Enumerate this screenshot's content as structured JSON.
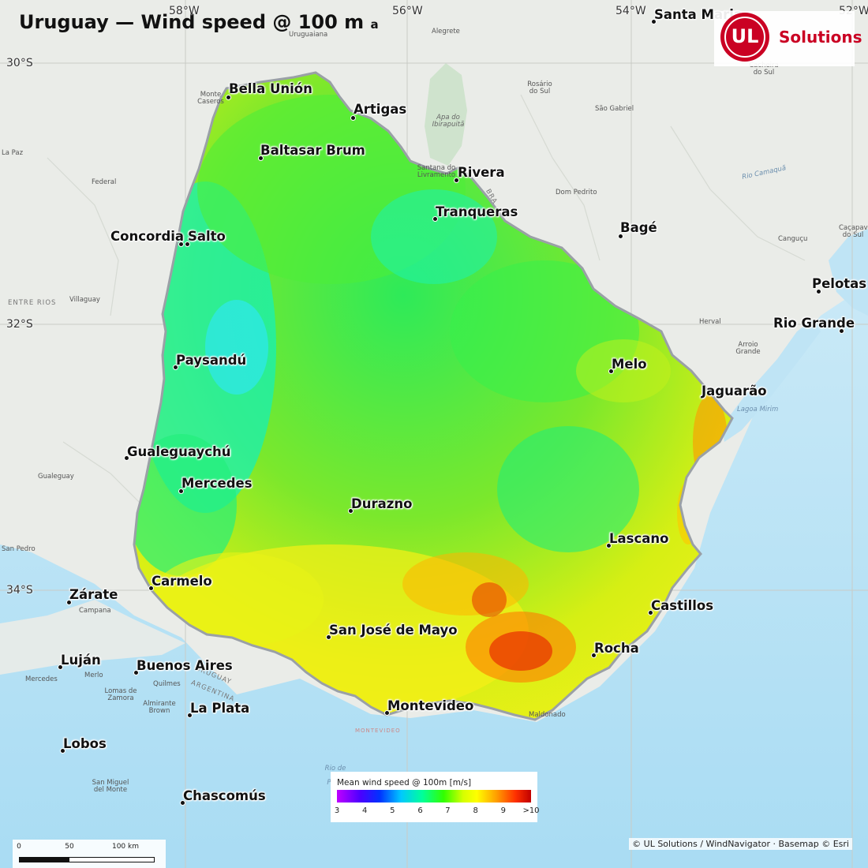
{
  "title": "Uruguay — Wind speed @ 100 m",
  "title_trailing": "a",
  "graticule": {
    "longitudes": [
      "58°W",
      "56°W",
      "54°W",
      "52°W"
    ],
    "latitudes": [
      "30°S",
      "32°S",
      "34°S"
    ]
  },
  "cities": [
    {
      "name": "Bella Unión"
    },
    {
      "name": "Artigas"
    },
    {
      "name": "Baltasar Brum"
    },
    {
      "name": "Rivera"
    },
    {
      "name": "Tranqueras"
    },
    {
      "name": "Concordia"
    },
    {
      "name": "Salto"
    },
    {
      "name": "Bagé"
    },
    {
      "name": "Pelotas"
    },
    {
      "name": "Rio Grande"
    },
    {
      "name": "Paysandú"
    },
    {
      "name": "Melo"
    },
    {
      "name": "Jaguarão"
    },
    {
      "name": "Gualeguaychú"
    },
    {
      "name": "Mercedes"
    },
    {
      "name": "Durazno"
    },
    {
      "name": "Lascano"
    },
    {
      "name": "Carmelo"
    },
    {
      "name": "Zárate"
    },
    {
      "name": "Castillos"
    },
    {
      "name": "San José de Mayo"
    },
    {
      "name": "Rocha"
    },
    {
      "name": "Luján"
    },
    {
      "name": "Buenos Aires"
    },
    {
      "name": "Montevideo"
    },
    {
      "name": "La Plata"
    },
    {
      "name": "Lobos"
    },
    {
      "name": "Chascomús"
    },
    {
      "name": "Santa Maria"
    }
  ],
  "basemap_labels": [
    "Uruguaiana",
    "Alegrete",
    "Monte Caseros",
    "Rosário do Sul",
    "São Gabriel",
    "Apa do Ibirapuitã",
    "Santana do Livramento",
    "Dom Pedrito",
    "Cacheira do Sul",
    "Caçapava do Sul",
    "Canguçu",
    "Herval",
    "Arroio Grande",
    "Lagoa Mirim",
    "La Paz",
    "Federal",
    "Villaguay",
    "ENTRE RIOS",
    "Gualeguay",
    "San Pedro",
    "Campana",
    "Mercedes",
    "Merlo",
    "Lomas de Zamora",
    "Quilmes",
    "Almirante Brown",
    "San Miguel del Monte",
    "URUGUAY",
    "ARGENTINA",
    "Rio de la Plata",
    "MONTEVIDEO",
    "Maldonado",
    "Rio Camaquã",
    "BRA"
  ],
  "logo": {
    "mark": "UL",
    "text": "Solutions"
  },
  "legend": {
    "title": "Mean wind speed @ 100m  [m/s]",
    "ticks": [
      "3",
      "4",
      "5",
      "6",
      "7",
      "8",
      "9",
      ">10"
    ],
    "colors": [
      "#c000ff",
      "#0032ff",
      "#00c8ff",
      "#00ff9a",
      "#32ff00",
      "#ffff00",
      "#ffa000",
      "#c00000"
    ]
  },
  "scalebar": {
    "labels": [
      "0",
      "50",
      "100 km"
    ]
  },
  "credit": "© UL Solutions / WindNavigator · Basemap © Esri"
}
